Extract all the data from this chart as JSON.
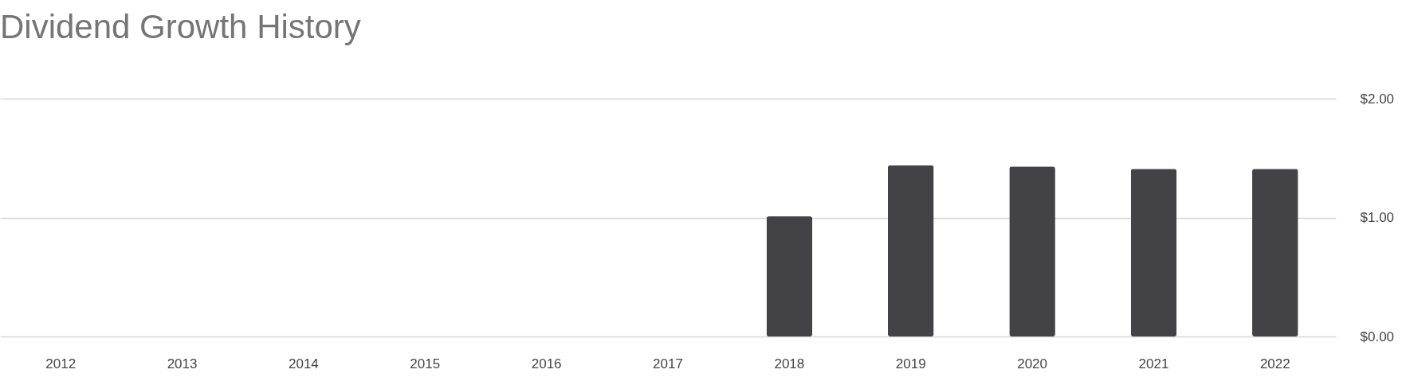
{
  "chart_data": {
    "type": "bar",
    "title": "Dividend Growth History",
    "categories": [
      "2012",
      "2013",
      "2014",
      "2015",
      "2016",
      "2017",
      "2018",
      "2019",
      "2020",
      "2021",
      "2022"
    ],
    "values": [
      null,
      null,
      null,
      null,
      null,
      null,
      1.01,
      1.44,
      1.43,
      1.41,
      1.41
    ],
    "color": "#434246",
    "ylim": [
      0,
      2
    ],
    "yticks": [
      {
        "value": 0,
        "label": "$0.00"
      },
      {
        "value": 1,
        "label": "$1.00"
      },
      {
        "value": 2,
        "label": "$2.00"
      }
    ],
    "grid": "y"
  }
}
